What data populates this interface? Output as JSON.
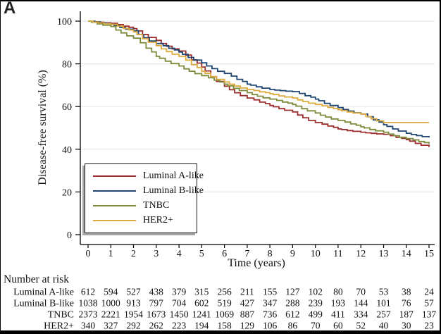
{
  "panel_label": "A",
  "colors": {
    "luminal_a": "#9b2d2d",
    "luminal_b": "#1e4670",
    "tnbc": "#7c8b3c",
    "her2": "#ddab3d",
    "gridline": "#e3ebee",
    "axis": "#000000"
  },
  "chart_data": {
    "type": "line",
    "subtype": "kaplan-meier-step",
    "title": "",
    "xlabel": "Time (years)",
    "ylabel": "Disease-free survival (%)",
    "xlim": [
      0,
      15
    ],
    "ylim": [
      0,
      100
    ],
    "xticks": [
      0,
      1,
      2,
      3,
      4,
      5,
      6,
      7,
      8,
      9,
      10,
      11,
      12,
      13,
      14,
      15
    ],
    "yticks": [
      0,
      20,
      40,
      60,
      80,
      100
    ],
    "grid": "horizontal-light",
    "legend_position": "inside-lower-left",
    "x": [
      0,
      1,
      2,
      3,
      4,
      5,
      6,
      7,
      8,
      9,
      10,
      11,
      12,
      13,
      14,
      15
    ],
    "series": [
      {
        "name": "Luminal A-like",
        "color": "#9b2d2d",
        "values": [
          100,
          99,
          96.5,
          91,
          86,
          78.5,
          69.5,
          64,
          60.5,
          57.5,
          52.5,
          49.5,
          48,
          47,
          44.5,
          41
        ]
      },
      {
        "name": "Luminal B-like",
        "color": "#1e4670",
        "values": [
          100,
          98.5,
          95.5,
          89.5,
          85.5,
          80.5,
          75.5,
          70.5,
          68,
          67,
          63.5,
          59.5,
          56.5,
          51.5,
          47.5,
          45.5
        ]
      },
      {
        "name": "TNBC",
        "color": "#7c8b3c",
        "values": [
          100,
          97.5,
          92,
          83.5,
          79,
          74.5,
          70.5,
          66.5,
          63.5,
          61,
          57,
          53.5,
          50.5,
          48,
          45,
          42.5
        ]
      },
      {
        "name": "HER2+",
        "color": "#ddab3d",
        "values": [
          100,
          98.5,
          95,
          88.5,
          83.5,
          76.5,
          71.5,
          68,
          66,
          64,
          61,
          58.5,
          56.5,
          52.5,
          52.5,
          52.5
        ]
      }
    ]
  },
  "risk_table": {
    "title": "Number at risk",
    "years": [
      0,
      1,
      2,
      3,
      4,
      5,
      6,
      7,
      8,
      9,
      10,
      11,
      12,
      13,
      14,
      15
    ],
    "rows": [
      {
        "label": "Luminal A-like",
        "values": [
          612,
          594,
          527,
          438,
          379,
          315,
          256,
          211,
          155,
          127,
          102,
          80,
          70,
          53,
          38,
          24
        ]
      },
      {
        "label": "Luminal B-like",
        "values": [
          1038,
          1000,
          913,
          797,
          704,
          602,
          519,
          427,
          347,
          288,
          239,
          193,
          144,
          101,
          76,
          57
        ]
      },
      {
        "label": "TNBC",
        "values": [
          2373,
          2221,
          1954,
          1673,
          1450,
          1241,
          1069,
          887,
          736,
          612,
          499,
          411,
          334,
          257,
          187,
          137
        ]
      },
      {
        "label": "HER2+",
        "values": [
          340,
          327,
          292,
          262,
          223,
          194,
          158,
          129,
          106,
          86,
          70,
          60,
          52,
          40,
          30,
          23
        ]
      }
    ]
  }
}
